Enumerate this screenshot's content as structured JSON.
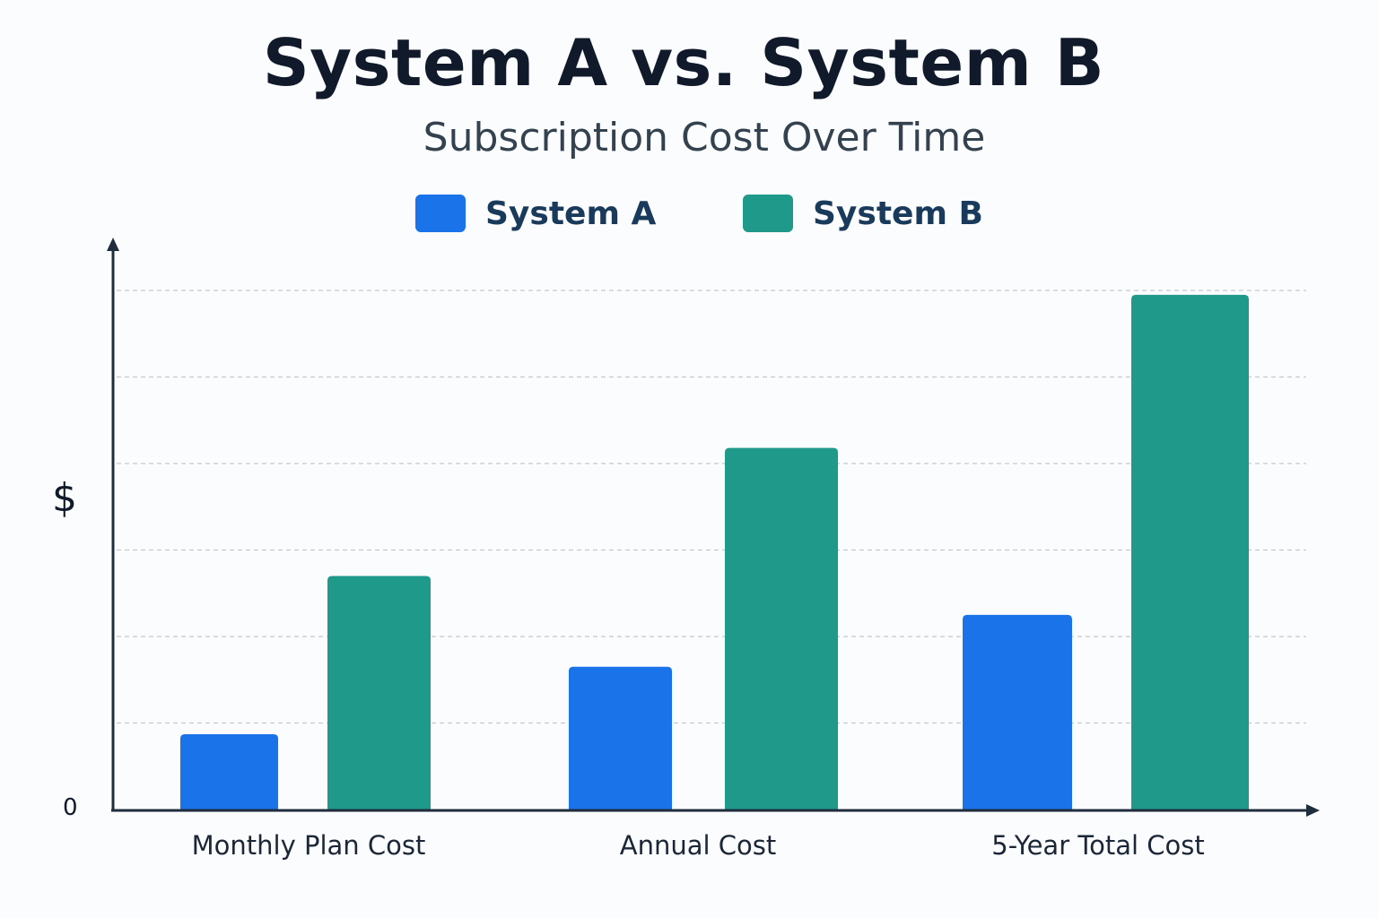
{
  "chart_data": {
    "type": "bar",
    "title": "System A vs. System B",
    "subtitle": "Subscription Cost Over Time",
    "ylabel": "$",
    "xlabel": "",
    "y_tick_labels": [
      "0"
    ],
    "ylim": [
      0,
      6
    ],
    "grid": true,
    "legend_placement": "top-center",
    "categories": [
      "Monthly Plan Cost",
      "Annual Cost",
      "5-Year Total Cost"
    ],
    "series": [
      {
        "name": "System A",
        "color": "#1a73e8",
        "values": [
          0.87,
          1.65,
          2.25
        ]
      },
      {
        "name": "System B",
        "color": "#1f9a8a",
        "values": [
          2.7,
          4.18,
          5.95
        ]
      }
    ]
  }
}
